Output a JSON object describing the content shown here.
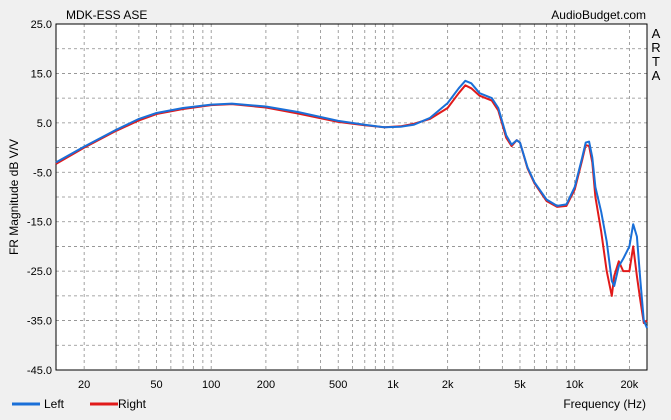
{
  "chart_data": {
    "type": "line",
    "title": "MDK-ESS ASE",
    "source": "AudioBudget.com",
    "side_label": "ARTA",
    "xlabel": "Frequency (Hz)",
    "ylabel": "FR Magnitude dB V/V",
    "xscale": "log",
    "xlim": [
      14,
      25000
    ],
    "ylim": [
      -45,
      25
    ],
    "grid": true,
    "y_ticks": [
      "25.0",
      "15.0",
      "5.0",
      "-5.0",
      "-15.0",
      "-25.0",
      "-35.0",
      "-45.0"
    ],
    "x_major_ticks": [
      {
        "value": 20,
        "label": "20"
      },
      {
        "value": 50,
        "label": "50"
      },
      {
        "value": 100,
        "label": "100"
      },
      {
        "value": 200,
        "label": "200"
      },
      {
        "value": 500,
        "label": "500"
      },
      {
        "value": 1000,
        "label": "1k"
      },
      {
        "value": 2000,
        "label": "2k"
      },
      {
        "value": 5000,
        "label": "5k"
      },
      {
        "value": 10000,
        "label": "10k"
      },
      {
        "value": 20000,
        "label": "20k"
      }
    ],
    "legend_position": "bottom-left",
    "series": [
      {
        "name": "Left",
        "color": "#1a6fd8",
        "points": [
          [
            14,
            -3.0
          ],
          [
            20,
            0.2
          ],
          [
            30,
            3.6
          ],
          [
            40,
            5.8
          ],
          [
            50,
            7.0
          ],
          [
            70,
            8.0
          ],
          [
            100,
            8.7
          ],
          [
            130,
            8.9
          ],
          [
            200,
            8.3
          ],
          [
            300,
            7.2
          ],
          [
            500,
            5.4
          ],
          [
            700,
            4.6
          ],
          [
            900,
            4.1
          ],
          [
            1100,
            4.2
          ],
          [
            1300,
            4.6
          ],
          [
            1600,
            6.0
          ],
          [
            2000,
            9.0
          ],
          [
            2300,
            12.0
          ],
          [
            2500,
            13.5
          ],
          [
            2700,
            13.0
          ],
          [
            3000,
            11.0
          ],
          [
            3500,
            10.0
          ],
          [
            3800,
            8.0
          ],
          [
            4200,
            2.5
          ],
          [
            4500,
            0.6
          ],
          [
            4800,
            1.5
          ],
          [
            5000,
            1.0
          ],
          [
            5500,
            -4.0
          ],
          [
            6000,
            -7.0
          ],
          [
            7000,
            -10.5
          ],
          [
            8000,
            -11.8
          ],
          [
            9000,
            -11.5
          ],
          [
            10000,
            -8.0
          ],
          [
            11000,
            -2.0
          ],
          [
            11500,
            1.0
          ],
          [
            12000,
            1.2
          ],
          [
            12500,
            -2.0
          ],
          [
            13000,
            -8.0
          ],
          [
            14000,
            -13.0
          ],
          [
            15000,
            -19.0
          ],
          [
            16000,
            -27.0
          ],
          [
            16500,
            -28.0
          ],
          [
            17500,
            -24.0
          ],
          [
            18500,
            -22.5
          ],
          [
            20000,
            -20.0
          ],
          [
            21000,
            -15.5
          ],
          [
            22000,
            -18.0
          ],
          [
            23000,
            -27.0
          ],
          [
            24000,
            -35.0
          ],
          [
            25000,
            -36.5
          ]
        ]
      },
      {
        "name": "Right",
        "color": "#e11a1a",
        "points": [
          [
            14,
            -3.3
          ],
          [
            20,
            0.0
          ],
          [
            30,
            3.4
          ],
          [
            40,
            5.5
          ],
          [
            50,
            6.8
          ],
          [
            70,
            7.8
          ],
          [
            100,
            8.6
          ],
          [
            130,
            8.8
          ],
          [
            200,
            8.1
          ],
          [
            300,
            6.9
          ],
          [
            500,
            5.2
          ],
          [
            700,
            4.5
          ],
          [
            900,
            4.1
          ],
          [
            1100,
            4.3
          ],
          [
            1300,
            4.8
          ],
          [
            1600,
            5.8
          ],
          [
            2000,
            8.0
          ],
          [
            2300,
            11.0
          ],
          [
            2500,
            12.6
          ],
          [
            2700,
            12.0
          ],
          [
            3000,
            10.5
          ],
          [
            3500,
            9.5
          ],
          [
            3800,
            7.5
          ],
          [
            4200,
            2.0
          ],
          [
            4500,
            0.3
          ],
          [
            4800,
            1.5
          ],
          [
            5000,
            1.0
          ],
          [
            5500,
            -4.2
          ],
          [
            6000,
            -7.2
          ],
          [
            7000,
            -10.8
          ],
          [
            8000,
            -12.0
          ],
          [
            9000,
            -11.8
          ],
          [
            10000,
            -8.5
          ],
          [
            11000,
            -2.5
          ],
          [
            11500,
            0.5
          ],
          [
            12000,
            0.3
          ],
          [
            12500,
            -3.0
          ],
          [
            13000,
            -10.0
          ],
          [
            14000,
            -17.0
          ],
          [
            15000,
            -25.0
          ],
          [
            16000,
            -30.0
          ],
          [
            16500,
            -26.0
          ],
          [
            17500,
            -23.0
          ],
          [
            18500,
            -25.0
          ],
          [
            20000,
            -25.0
          ],
          [
            21000,
            -20.0
          ],
          [
            22000,
            -26.0
          ],
          [
            23000,
            -31.0
          ],
          [
            24000,
            -35.5
          ],
          [
            25000,
            -35.0
          ]
        ]
      }
    ]
  }
}
